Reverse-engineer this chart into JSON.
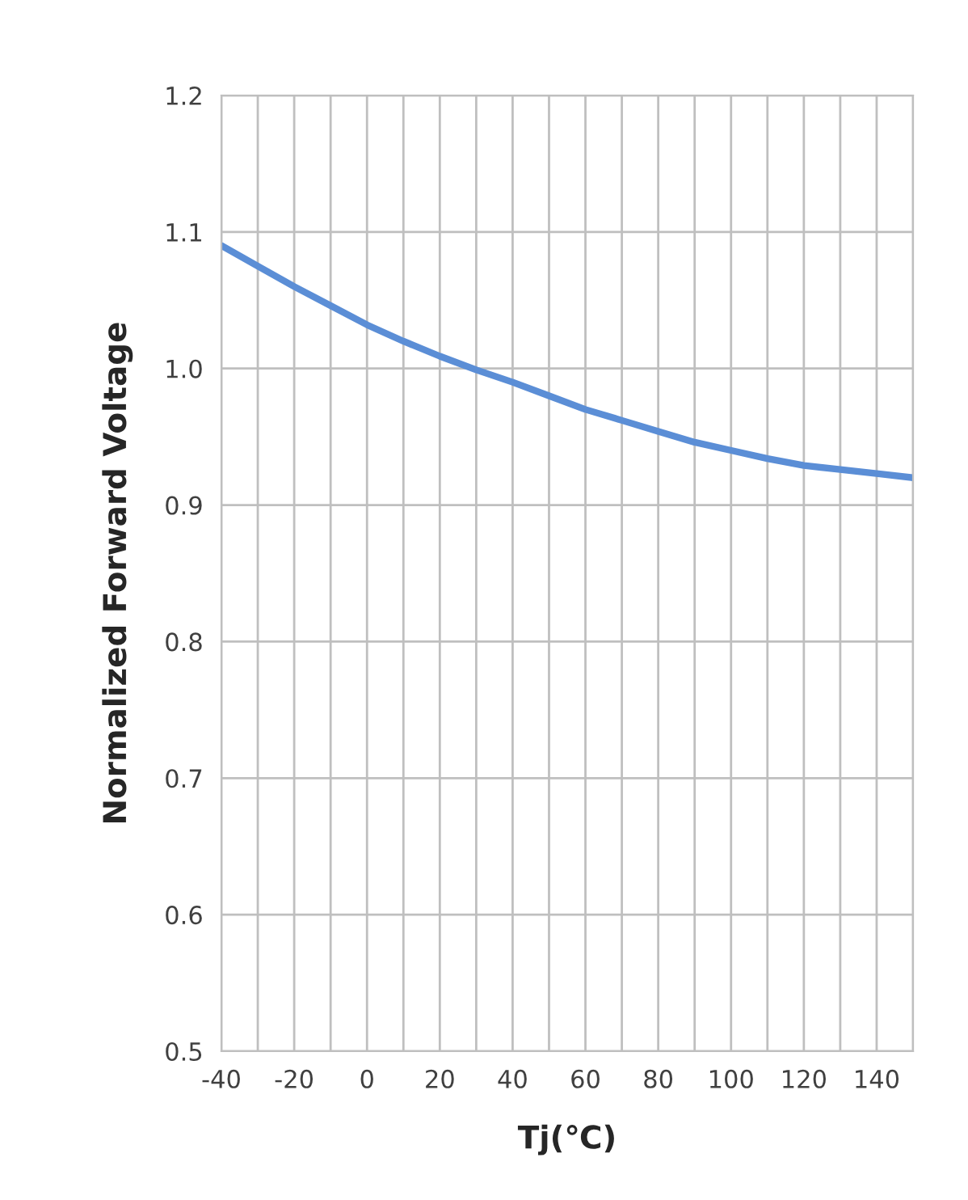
{
  "chart_data": {
    "type": "line",
    "xlabel": "Tj(℃)",
    "ylabel": "Normalized Forward Voltage",
    "x": [
      -40,
      -30,
      -20,
      -10,
      0,
      10,
      20,
      30,
      40,
      50,
      60,
      70,
      80,
      90,
      100,
      110,
      120,
      130,
      140,
      150
    ],
    "series": [
      {
        "color": "#5b8ed6",
        "values": [
          1.09,
          1.075,
          1.06,
          1.046,
          1.032,
          1.02,
          1.009,
          0.999,
          0.99,
          0.98,
          0.97,
          0.962,
          0.954,
          0.946,
          0.94,
          0.934,
          0.929,
          0.926,
          0.923,
          0.92
        ]
      }
    ],
    "xlim": [
      -40,
      150
    ],
    "ylim": [
      0.5,
      1.2
    ],
    "xticks": [
      -40,
      {
        "value": -30,
        "label": null
      },
      -20,
      {
        "value": -10,
        "label": null
      },
      0,
      {
        "value": 10,
        "label": null
      },
      20,
      {
        "value": 30,
        "label": null
      },
      40,
      {
        "value": 50,
        "label": null
      },
      60,
      {
        "value": 70,
        "label": null
      },
      80,
      {
        "value": 90,
        "label": null
      },
      100,
      {
        "value": 110,
        "label": null
      },
      120,
      {
        "value": 130,
        "label": null
      },
      140,
      {
        "value": 150,
        "label": null
      }
    ],
    "yticks": [
      {
        "value": 0.5,
        "label": "0.5"
      },
      {
        "value": 0.6,
        "label": "0.6"
      },
      {
        "value": 0.7,
        "label": "0.7"
      },
      {
        "value": 0.8,
        "label": "0.8"
      },
      {
        "value": 0.9,
        "label": "0.9"
      },
      {
        "value": 1.0,
        "label": "1.0"
      },
      {
        "value": 1.1,
        "label": "1.1"
      },
      {
        "value": 1.2,
        "label": "1.2"
      }
    ],
    "grid": true,
    "marker": "none",
    "line_style": "solid",
    "legend": false
  }
}
